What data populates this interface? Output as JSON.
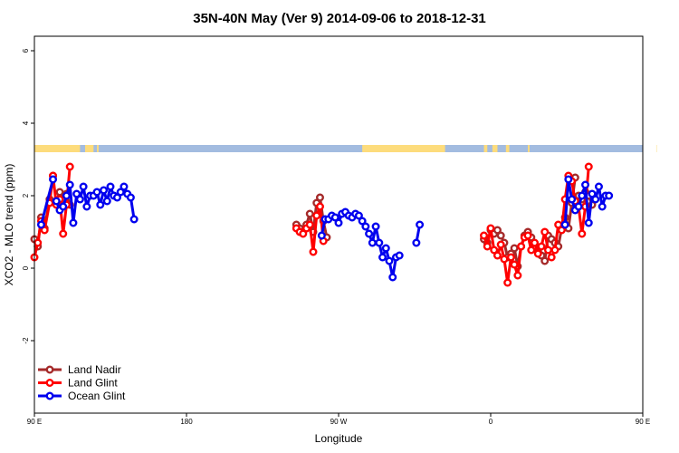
{
  "chart_data": {
    "type": "line",
    "title": "35N-40N May (Ver 9)   2014-09-06 to 2018-12-31",
    "xlabel": "Longitude",
    "ylabel": "XCO2 - MLO trend (ppm)",
    "xlim": [
      90,
      450
    ],
    "ylim": [
      -4,
      6.4
    ],
    "x_ticks": [
      {
        "value": 90,
        "label": "90 E"
      },
      {
        "value": 180,
        "label": "180"
      },
      {
        "value": 270,
        "label": "90 W"
      },
      {
        "value": 360,
        "label": "0"
      },
      {
        "value": 450,
        "label": "90 E"
      },
      {
        "value": 540,
        "label": "180"
      }
    ],
    "y_ticks": [
      -2,
      0,
      2,
      4,
      6
    ],
    "grid": false,
    "legend_position": "bottom-left",
    "land_ocean_band": {
      "y_range": [
        3.2,
        3.4
      ],
      "land_color": "#fddc7c",
      "ocean_color": "#a3bce0",
      "land_segments": [
        [
          90,
          117
        ],
        [
          120,
          125
        ],
        [
          127,
          128
        ],
        [
          284,
          333
        ],
        [
          356,
          358
        ],
        [
          361,
          364
        ],
        [
          369,
          371
        ],
        [
          382,
          383
        ],
        [
          458,
          473
        ],
        [
          475,
          478
        ],
        [
          482,
          483
        ],
        [
          487,
          488
        ],
        [
          507,
          519
        ]
      ]
    },
    "series": [
      {
        "name": "Land Nadir",
        "color": "#a52a2a",
        "segments": [
          [
            [
              90,
              0.8
            ],
            [
              92,
              0.6
            ],
            [
              94,
              1.4
            ],
            [
              96,
              1.1
            ],
            [
              99,
              1.9
            ],
            [
              101,
              2.55
            ]
          ],
          [
            [
              103,
              1.85
            ],
            [
              105,
              2.1
            ],
            [
              107,
              1.9
            ],
            [
              109,
              2.05
            ],
            [
              111,
              1.75
            ]
          ],
          [
            [
              245,
              1.2
            ],
            [
              247,
              1.1
            ],
            [
              249,
              1.0
            ],
            [
              251,
              1.2
            ],
            [
              253,
              1.5
            ],
            [
              255,
              1.0
            ],
            [
              257,
              1.8
            ],
            [
              259,
              1.95
            ],
            [
              261,
              1.3
            ],
            [
              263,
              0.85
            ]
          ],
          [
            [
              356,
              0.8
            ],
            [
              358,
              0.7
            ],
            [
              360,
              1.05
            ],
            [
              362,
              0.95
            ],
            [
              364,
              1.05
            ],
            [
              366,
              0.9
            ],
            [
              368,
              0.7
            ],
            [
              370,
              0.3
            ],
            [
              372,
              0.4
            ],
            [
              374,
              0.55
            ],
            [
              376,
              0.05
            ],
            [
              378,
              0.6
            ],
            [
              380,
              0.9
            ],
            [
              382,
              1.0
            ],
            [
              384,
              0.85
            ],
            [
              386,
              0.6
            ],
            [
              388,
              0.45
            ],
            [
              390,
              0.35
            ],
            [
              392,
              0.2
            ],
            [
              394,
              0.9
            ],
            [
              396,
              0.8
            ],
            [
              398,
              0.7
            ],
            [
              400,
              0.6
            ],
            [
              402,
              1.1
            ],
            [
              404,
              1.4
            ],
            [
              406,
              1.1
            ],
            [
              408,
              1.8
            ],
            [
              410,
              2.5
            ]
          ],
          [
            [
              412,
              2.0
            ],
            [
              414,
              1.9
            ],
            [
              416,
              2.1
            ],
            [
              418,
              2.0
            ],
            [
              420,
              1.75
            ]
          ]
        ]
      },
      {
        "name": "Land Glint",
        "color": "#ff0000",
        "segments": [
          [
            [
              90,
              0.3
            ],
            [
              92,
              0.7
            ],
            [
              94,
              1.3
            ],
            [
              96,
              1.05
            ],
            [
              99,
              1.8
            ],
            [
              101,
              2.55
            ],
            [
              103,
              1.75
            ],
            [
              105,
              1.9
            ],
            [
              107,
              0.95
            ],
            [
              109,
              1.75
            ],
            [
              111,
              2.8
            ]
          ],
          [
            [
              245,
              1.1
            ],
            [
              247,
              1.0
            ],
            [
              249,
              0.95
            ],
            [
              251,
              1.1
            ],
            [
              253,
              1.2
            ],
            [
              255,
              0.45
            ],
            [
              257,
              1.45
            ],
            [
              259,
              1.7
            ],
            [
              261,
              0.75
            ]
          ],
          [
            [
              356,
              0.9
            ],
            [
              358,
              0.6
            ],
            [
              360,
              1.1
            ],
            [
              362,
              0.5
            ],
            [
              364,
              0.35
            ],
            [
              366,
              0.65
            ],
            [
              368,
              0.25
            ],
            [
              370,
              -0.4
            ],
            [
              372,
              0.3
            ],
            [
              374,
              0.1
            ],
            [
              376,
              -0.2
            ],
            [
              378,
              0.6
            ],
            [
              380,
              0.85
            ],
            [
              382,
              0.9
            ],
            [
              384,
              0.5
            ],
            [
              386,
              0.7
            ],
            [
              388,
              0.4
            ],
            [
              390,
              0.6
            ],
            [
              392,
              1.0
            ],
            [
              394,
              0.5
            ],
            [
              396,
              0.3
            ],
            [
              398,
              0.5
            ],
            [
              400,
              1.2
            ],
            [
              402,
              1.05
            ],
            [
              404,
              1.9
            ],
            [
              406,
              2.55
            ]
          ],
          [
            [
              408,
              2.4
            ],
            [
              410,
              1.85
            ],
            [
              412,
              1.7
            ],
            [
              414,
              0.95
            ],
            [
              416,
              1.7
            ],
            [
              418,
              2.8
            ]
          ]
        ]
      },
      {
        "name": "Ocean Glint",
        "color": "#0000ee",
        "segments": [
          [
            [
              94,
              1.2
            ],
            [
              101,
              2.45
            ]
          ],
          [
            [
              103,
              1.85
            ],
            [
              105,
              1.6
            ],
            [
              107,
              1.7
            ],
            [
              109,
              2.0
            ],
            [
              111,
              2.3
            ],
            [
              113,
              1.25
            ],
            [
              115,
              2.05
            ],
            [
              117,
              1.9
            ],
            [
              119,
              2.25
            ],
            [
              121,
              1.7
            ],
            [
              123,
              2.0
            ],
            [
              125,
              2.0
            ],
            [
              127,
              2.1
            ],
            [
              129,
              1.75
            ],
            [
              131,
              2.15
            ],
            [
              133,
              1.85
            ],
            [
              135,
              2.25
            ],
            [
              137,
              2.0
            ],
            [
              139,
              1.95
            ],
            [
              141,
              2.1
            ],
            [
              143,
              2.25
            ],
            [
              145,
              2.05
            ],
            [
              147,
              1.95
            ],
            [
              149,
              1.35
            ]
          ],
          [
            [
              260,
              0.9
            ],
            [
              262,
              1.35
            ],
            [
              264,
              1.35
            ],
            [
              266,
              1.45
            ],
            [
              268,
              1.4
            ],
            [
              270,
              1.25
            ],
            [
              272,
              1.5
            ],
            [
              274,
              1.55
            ],
            [
              276,
              1.45
            ],
            [
              278,
              1.4
            ],
            [
              280,
              1.5
            ],
            [
              282,
              1.45
            ],
            [
              284,
              1.3
            ],
            [
              286,
              1.15
            ],
            [
              288,
              0.95
            ],
            [
              290,
              0.7
            ],
            [
              292,
              1.15
            ],
            [
              294,
              0.7
            ],
            [
              296,
              0.3
            ],
            [
              298,
              0.55
            ],
            [
              300,
              0.2
            ],
            [
              302,
              -0.25
            ],
            [
              304,
              0.3
            ],
            [
              306,
              0.35
            ]
          ],
          [
            [
              316,
              0.7
            ],
            [
              318,
              1.2
            ]
          ],
          [
            [
              404,
              1.2
            ],
            [
              406,
              2.45
            ],
            [
              408,
              1.9
            ],
            [
              410,
              1.6
            ],
            [
              412,
              1.7
            ],
            [
              414,
              2.0
            ],
            [
              416,
              2.3
            ],
            [
              418,
              1.25
            ],
            [
              420,
              2.05
            ],
            [
              422,
              1.9
            ],
            [
              424,
              2.25
            ],
            [
              426,
              1.7
            ],
            [
              428,
              2.0
            ],
            [
              430,
              2.0
            ]
          ]
        ]
      }
    ]
  }
}
